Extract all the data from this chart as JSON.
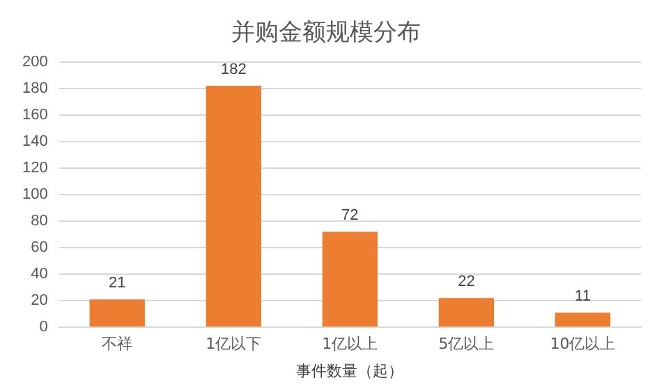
{
  "chart_data": {
    "type": "bar",
    "title": "并购金额规模分布",
    "xlabel": "事件数量（起）",
    "categories": [
      "不祥",
      "1亿以下",
      "1亿以上",
      "5亿以上",
      "10亿以上"
    ],
    "values": [
      21,
      182,
      72,
      22,
      11
    ],
    "color": "#ed7d31",
    "ylim": [
      0,
      200
    ],
    "yticks": [
      0,
      20,
      40,
      60,
      80,
      100,
      120,
      140,
      160,
      180,
      200
    ],
    "grid": "y",
    "data_labels": true
  }
}
